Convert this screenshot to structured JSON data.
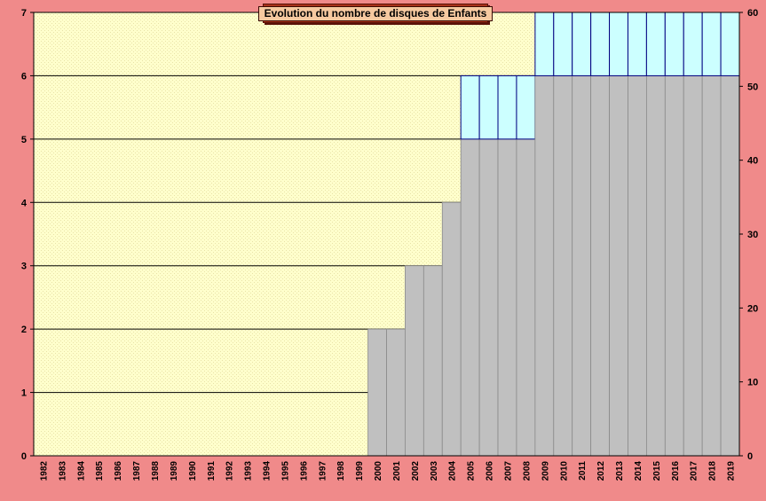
{
  "chart_data": {
    "type": "bar",
    "title": "Evolution  du  nombre de disques de Enfants",
    "categories": [
      "1982",
      "1983",
      "1984",
      "1985",
      "1986",
      "1987",
      "1988",
      "1989",
      "1990",
      "1991",
      "1992",
      "1993",
      "1994",
      "1995",
      "1996",
      "1997",
      "1998",
      "1999",
      "2000",
      "2001",
      "2002",
      "2003",
      "2004",
      "2005",
      "2006",
      "2007",
      "2008",
      "2009",
      "2010",
      "2011",
      "2012",
      "2013",
      "2014",
      "2015",
      "2016",
      "2017",
      "2018",
      "2019"
    ],
    "series": [
      {
        "values": [
          0,
          0,
          0,
          0,
          0,
          0,
          0,
          0,
          0,
          0,
          0,
          0,
          0,
          0,
          0,
          0,
          0,
          0,
          2,
          2,
          3,
          3,
          4,
          5,
          5,
          5,
          5,
          6,
          6,
          6,
          6,
          6,
          6,
          6,
          6,
          6,
          6,
          6
        ]
      },
      {
        "values": [
          0,
          0,
          0,
          0,
          0,
          0,
          0,
          0,
          0,
          0,
          0,
          0,
          0,
          0,
          0,
          0,
          0,
          0,
          0,
          0,
          0,
          0,
          0,
          1,
          1,
          1,
          1,
          1,
          1,
          1,
          1,
          1,
          1,
          1,
          1,
          1,
          1,
          1
        ]
      }
    ],
    "ylim": [
      0,
      7
    ],
    "y_ticks": [
      "0",
      "1",
      "2",
      "3",
      "4",
      "5",
      "6",
      "7"
    ],
    "y2lim": [
      0,
      60
    ],
    "y2_ticks": [
      "0",
      "10",
      "20",
      "30",
      "40",
      "50",
      "60"
    ],
    "grid": true,
    "colors": {
      "frame": "#f08a8a",
      "plot_bg": "#ffffcc",
      "bar_gray": "#c0c0c0",
      "bar_cyan": "#ccffff",
      "grid": "#000000",
      "title_bg": "#a8321a",
      "title_inner": "#f6c9a0"
    }
  }
}
